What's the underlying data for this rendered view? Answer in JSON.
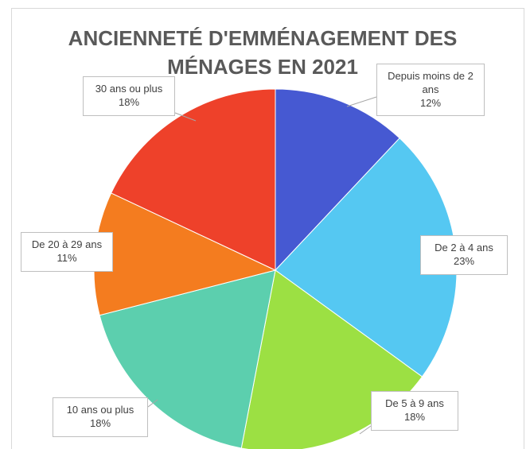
{
  "chart_data": {
    "type": "pie",
    "title": "ANCIENNETÉ D'EMMÉNAGEMENT DES MÉNAGES EN 2021",
    "categories": [
      "Depuis moins de 2 ans",
      "De 2 à 4 ans",
      "De 5 à 9 ans",
      "10 ans ou plus",
      "De 20 à 29 ans",
      "30 ans ou plus"
    ],
    "values": [
      12,
      23,
      18,
      18,
      11,
      18
    ],
    "value_labels": [
      "12%",
      "23%",
      "18%",
      "18%",
      "11%",
      "18%"
    ],
    "colors": [
      "#4659d2",
      "#55c8f2",
      "#9ce043",
      "#5ccfae",
      "#f47c1f",
      "#ee412a"
    ]
  }
}
